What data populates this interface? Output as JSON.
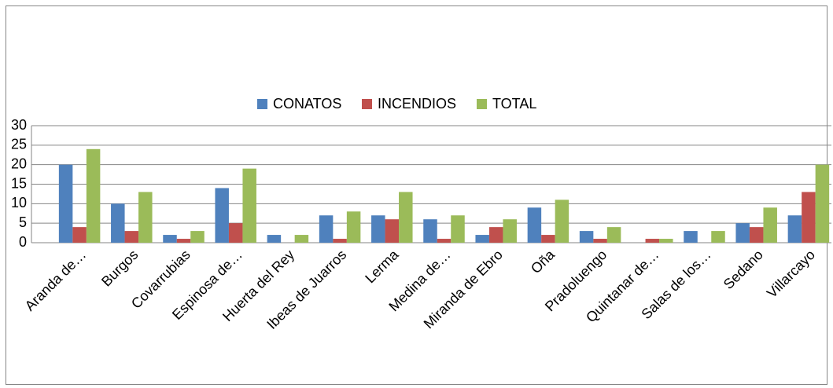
{
  "chart_data": {
    "type": "bar",
    "categories": [
      "Aranda de…",
      "Burgos",
      "Covarrubias",
      "Espinosa de…",
      "Huerta del Rey",
      "Ibeas de Juarros",
      "Lerma",
      "Medina de…",
      "Miranda de Ebro",
      "Oña",
      "Pradoluengo",
      "Quintanar de…",
      "Salas de los…",
      "Sedano",
      "Villarcayo"
    ],
    "series": [
      {
        "name": "CONATOS",
        "color": "#4f81bd",
        "values": [
          20,
          10,
          2,
          14,
          2,
          7,
          7,
          6,
          2,
          9,
          3,
          0,
          3,
          5,
          7
        ]
      },
      {
        "name": "INCENDIOS",
        "color": "#c0504d",
        "values": [
          4,
          3,
          1,
          5,
          0,
          1,
          6,
          1,
          4,
          2,
          1,
          1,
          0,
          4,
          13
        ]
      },
      {
        "name": "TOTAL",
        "color": "#9bbb59",
        "values": [
          24,
          13,
          3,
          19,
          2,
          8,
          13,
          7,
          6,
          11,
          4,
          1,
          3,
          9,
          20
        ]
      }
    ],
    "ylim": [
      0,
      30
    ],
    "yticks": [
      0,
      5,
      10,
      15,
      20,
      25,
      30
    ],
    "grid": true,
    "legend": "top"
  }
}
